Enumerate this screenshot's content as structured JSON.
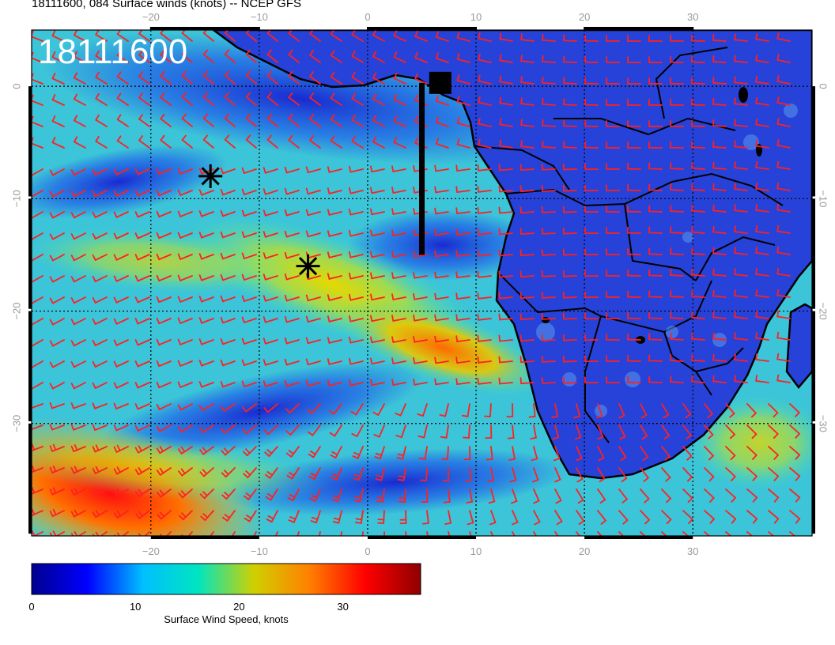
{
  "title": "18111600, 084 Surface winds (knots) -- NCEP GFS",
  "overlay_timestamp": "18111600",
  "map": {
    "projection": "lat-lon",
    "lon_range": [
      -31,
      41
    ],
    "lat_range": [
      -40,
      5
    ],
    "grid": "dotted",
    "land_outline_color": "#000000",
    "barb_color": "#ff2020",
    "x_ticks": [
      "−20",
      "−10",
      "0",
      "10",
      "20",
      "30"
    ],
    "x_tick_values": [
      -20,
      -10,
      0,
      10,
      20,
      30
    ],
    "y_ticks": [
      "0",
      "−10",
      "−20",
      "−30"
    ],
    "y_tick_values": [
      0,
      -10,
      -20,
      -30
    ],
    "markers": [
      {
        "type": "asterisk",
        "lon": -14.5,
        "lat": -8
      },
      {
        "type": "asterisk",
        "lon": -5.5,
        "lat": -16
      },
      {
        "type": "square",
        "lon": 6.7,
        "lat": 0.3
      },
      {
        "type": "vertical-bar",
        "lon": 5,
        "lat_from": 0.3,
        "lat_to": -15
      }
    ]
  },
  "colorbar": {
    "label": "Surface Wind Speed, knots",
    "min": 0,
    "max": 37.5,
    "tick_labels": [
      "0",
      "10",
      "20",
      "30"
    ],
    "tick_values": [
      0,
      10,
      20,
      30
    ],
    "colormap": [
      "#00008f",
      "#0000ff",
      "#00bfff",
      "#00e5c0",
      "#d0d000",
      "#ff8000",
      "#ff0000",
      "#8f0000"
    ]
  }
}
